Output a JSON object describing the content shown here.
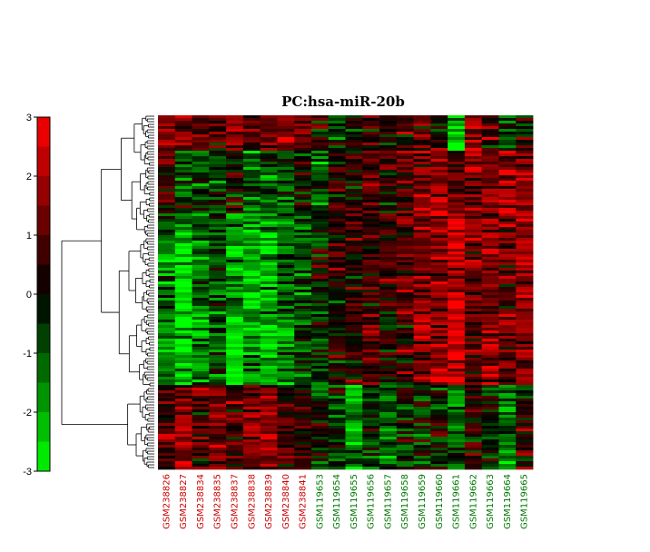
{
  "chart_data": {
    "type": "heatmap",
    "title": "PC:hsa-miR-20b",
    "colorbar": {
      "ticks": [
        3,
        2,
        1,
        0,
        -1,
        -2,
        -3
      ],
      "vmin": -3,
      "vmax": 3,
      "low_color": "#00ff00",
      "mid_color": "#000000",
      "high_color": "#ff0000"
    },
    "columns": [
      {
        "id": "GSM238826",
        "group": "red"
      },
      {
        "id": "GSM238827",
        "group": "red"
      },
      {
        "id": "GSM238834",
        "group": "red"
      },
      {
        "id": "GSM238835",
        "group": "red"
      },
      {
        "id": "GSM238837",
        "group": "red"
      },
      {
        "id": "GSM238838",
        "group": "red"
      },
      {
        "id": "GSM238839",
        "group": "red"
      },
      {
        "id": "GSM238840",
        "group": "red"
      },
      {
        "id": "GSM238841",
        "group": "red"
      },
      {
        "id": "GSM119653",
        "group": "green"
      },
      {
        "id": "GSM119654",
        "group": "green"
      },
      {
        "id": "GSM119655",
        "group": "green"
      },
      {
        "id": "GSM119656",
        "group": "green"
      },
      {
        "id": "GSM119657",
        "group": "green"
      },
      {
        "id": "GSM119658",
        "group": "green"
      },
      {
        "id": "GSM119659",
        "group": "green"
      },
      {
        "id": "GSM119660",
        "group": "green"
      },
      {
        "id": "GSM119661",
        "group": "green"
      },
      {
        "id": "GSM119662",
        "group": "green"
      },
      {
        "id": "GSM119663",
        "group": "green"
      },
      {
        "id": "GSM119664",
        "group": "green"
      },
      {
        "id": "GSM119665",
        "group": "green"
      }
    ],
    "group_colors": {
      "red": "#cc0000",
      "green": "#007700"
    },
    "row_blocks": [
      {
        "share": 0.1,
        "values": [
          1.5,
          1.2,
          0.8,
          1.0,
          1.8,
          0.6,
          1.0,
          1.6,
          1.2,
          0.2,
          -0.6,
          -0.2,
          0.6,
          0.4,
          0.5,
          0.8,
          0.6,
          -2.5,
          1.5,
          1.0,
          -1.0,
          0.5
        ]
      },
      {
        "share": 0.18,
        "values": [
          0.5,
          -0.6,
          -0.8,
          -1.0,
          0.3,
          -1.2,
          -0.6,
          -0.8,
          0.2,
          -0.8,
          0.4,
          0.3,
          0.9,
          0.5,
          0.8,
          1.5,
          1.8,
          1.0,
          1.5,
          1.2,
          1.8,
          1.6
        ]
      },
      {
        "share": 0.27,
        "values": [
          -1.2,
          -2.5,
          -1.2,
          -0.5,
          -1.8,
          -2.5,
          -2.0,
          -1.2,
          -1.0,
          -0.2,
          0.4,
          0.7,
          0.5,
          0.8,
          0.9,
          1.2,
          1.6,
          2.4,
          1.5,
          1.4,
          1.0,
          1.8
        ]
      },
      {
        "share": 0.21,
        "values": [
          -1.6,
          -2.4,
          -1.6,
          -1.0,
          -2.6,
          -1.6,
          -2.2,
          -1.6,
          -0.8,
          -0.6,
          0.2,
          0.6,
          0.9,
          0.2,
          0.7,
          1.4,
          1.8,
          2.2,
          1.2,
          1.6,
          1.2,
          1.5
        ]
      },
      {
        "share": 0.24,
        "values": [
          0.9,
          1.5,
          0.8,
          1.2,
          1.0,
          1.4,
          1.5,
          1.0,
          0.6,
          -0.4,
          -0.6,
          -1.5,
          -0.4,
          -0.8,
          -0.5,
          -0.3,
          -0.2,
          -1.2,
          0.3,
          -0.2,
          -1.4,
          0.4
        ]
      }
    ]
  }
}
